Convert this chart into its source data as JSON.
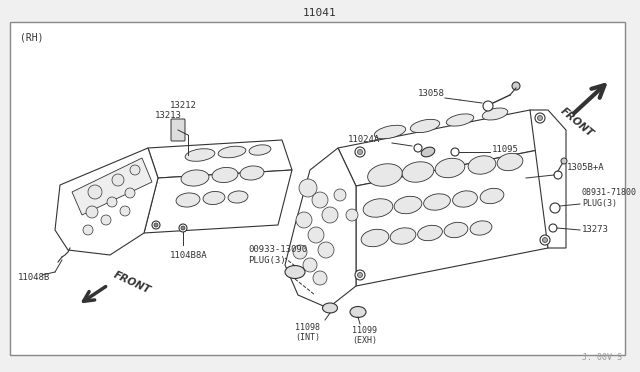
{
  "title": "11041",
  "watermark": "J: 00V S",
  "bg_color": "#f8f8f8",
  "border_color": "#999999",
  "line_color": "#333333",
  "fig_width": 6.4,
  "fig_height": 3.72,
  "labels": {
    "rh": "(RH)",
    "part_13212": "13212",
    "part_13213": "13213",
    "part_11048B": "11048B",
    "part_11048BA": "1104B8A",
    "part_00933": "00933-13090\nPLUG(3)",
    "part_11098": "11098\n(INT)",
    "part_11099": "11099\n(EXH)",
    "part_13058": "13058",
    "part_11024A": "11024A",
    "part_11095": "11095",
    "part_13058B": "1305B+A",
    "part_08931": "08931-71800\nPLUG(3)",
    "part_13273": "13273",
    "front_left": "FRONT",
    "front_right": "FRONT"
  }
}
